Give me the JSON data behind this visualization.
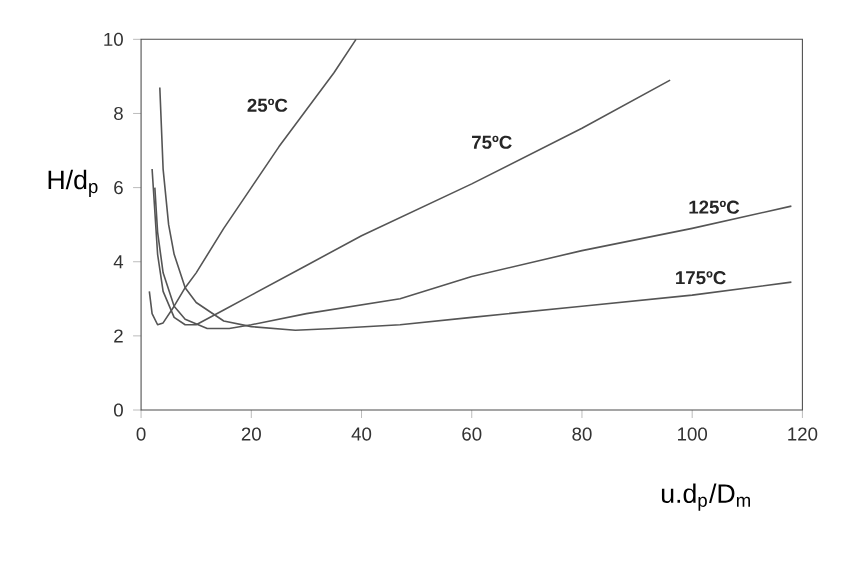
{
  "chart_data": {
    "type": "line",
    "xlabel": "u.d$_{p}$/D$_{m}$",
    "ylabel": "H/d$_{p}$",
    "xlim": [
      0,
      120
    ],
    "ylim": [
      0,
      10
    ],
    "xticks": [
      0,
      20,
      40,
      60,
      80,
      100,
      120
    ],
    "yticks": [
      0,
      2,
      4,
      6,
      8,
      10
    ],
    "grid": false,
    "legend": false,
    "marker": "none",
    "line_style": "solid",
    "series": [
      {
        "name": "25ºC",
        "color": "#555555",
        "x": [
          1.5,
          2,
          3,
          4,
          6,
          8,
          10,
          15,
          20,
          25,
          30,
          35,
          39
        ],
        "values": [
          3.2,
          2.6,
          2.3,
          2.35,
          2.8,
          3.3,
          3.7,
          4.9,
          6.0,
          7.1,
          8.1,
          9.1,
          10
        ]
      },
      {
        "name": "75ºC",
        "color": "#555555",
        "x": [
          2,
          3,
          4,
          6,
          8,
          10,
          15,
          20,
          30,
          40,
          60,
          80,
          96
        ],
        "values": [
          6.5,
          4.2,
          3.2,
          2.5,
          2.3,
          2.3,
          2.7,
          3.1,
          3.9,
          4.7,
          6.1,
          7.6,
          8.9
        ]
      },
      {
        "name": "125ºC",
        "color": "#555555",
        "x": [
          2.5,
          3,
          4,
          6,
          8,
          12,
          16,
          20,
          30,
          47,
          60,
          80,
          100,
          118
        ],
        "values": [
          6.0,
          4.8,
          3.7,
          2.8,
          2.45,
          2.2,
          2.2,
          2.3,
          2.6,
          3.0,
          3.6,
          4.3,
          4.9,
          5.5
        ]
      },
      {
        "name": "175ºC",
        "color": "#555555",
        "x": [
          3.4,
          4,
          5,
          6,
          8,
          10,
          15,
          20,
          28,
          35,
          47,
          60,
          80,
          100,
          118
        ],
        "values": [
          8.7,
          6.5,
          5.0,
          4.2,
          3.3,
          2.9,
          2.4,
          2.25,
          2.15,
          2.2,
          2.3,
          2.5,
          2.8,
          3.1,
          3.45
        ]
      }
    ]
  }
}
